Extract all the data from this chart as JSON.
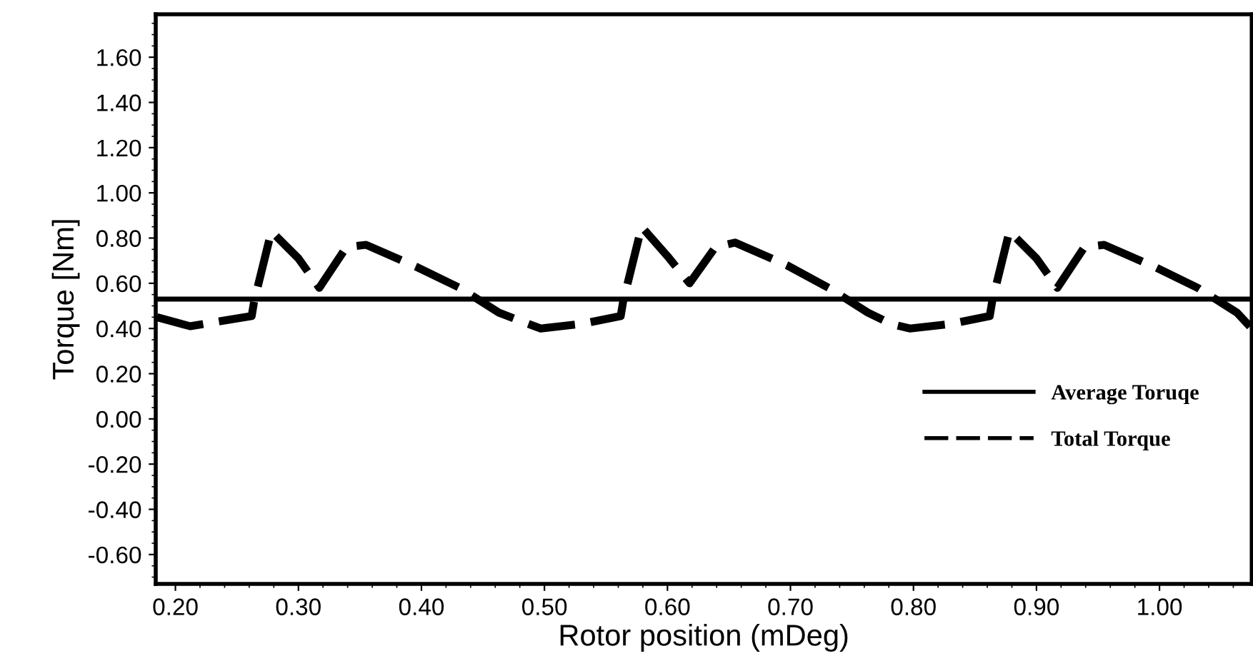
{
  "chart_data": {
    "type": "line",
    "xlabel": "Rotor position (mDeg)",
    "ylabel": "Torque [Nm]",
    "xlim": [
      0.184,
      1.075
    ],
    "ylim": [
      -0.73,
      1.79
    ],
    "xticks": [
      {
        "value": 0.2,
        "label": "0.20"
      },
      {
        "value": 0.3,
        "label": "0.30"
      },
      {
        "value": 0.4,
        "label": "0.40"
      },
      {
        "value": 0.5,
        "label": "0.50"
      },
      {
        "value": 0.6,
        "label": "0.60"
      },
      {
        "value": 0.7,
        "label": "0.70"
      },
      {
        "value": 0.8,
        "label": "0.80"
      },
      {
        "value": 0.9,
        "label": "0.90"
      },
      {
        "value": 1.0,
        "label": "1.00"
      }
    ],
    "yticks": [
      {
        "value": -0.6,
        "label": "-0.60"
      },
      {
        "value": -0.4,
        "label": "-0.40"
      },
      {
        "value": -0.2,
        "label": "-0.20"
      },
      {
        "value": 0.0,
        "label": "0.00"
      },
      {
        "value": 0.2,
        "label": "0.20"
      },
      {
        "value": 0.4,
        "label": "0.40"
      },
      {
        "value": 0.6,
        "label": "0.60"
      },
      {
        "value": 0.8,
        "label": "0.80"
      },
      {
        "value": 1.0,
        "label": "1.00"
      },
      {
        "value": 1.2,
        "label": "1.20"
      },
      {
        "value": 1.4,
        "label": "1.40"
      },
      {
        "value": 1.6,
        "label": "1.60"
      }
    ],
    "grid": false,
    "legend": "bottom right",
    "marker": "none",
    "series": [
      {
        "name": "Average Toruqe",
        "color": "#000000",
        "line_style": "solid",
        "x": [
          0.184,
          1.075
        ],
        "values": [
          0.53,
          0.53
        ]
      },
      {
        "name": "Total Torque",
        "color": "#000000",
        "line_style": "dashed",
        "x": [
          0.185,
          0.212,
          0.262,
          0.264,
          0.278,
          0.3,
          0.317,
          0.339,
          0.355,
          0.397,
          0.431,
          0.463,
          0.482,
          0.497,
          0.53,
          0.562,
          0.564,
          0.579,
          0.6,
          0.618,
          0.639,
          0.655,
          0.697,
          0.731,
          0.763,
          0.782,
          0.797,
          0.83,
          0.862,
          0.864,
          0.878,
          0.9,
          0.917,
          0.939,
          0.955,
          0.997,
          1.031,
          1.063,
          1.075
        ],
        "values": [
          0.45,
          0.41,
          0.455,
          0.52,
          0.83,
          0.71,
          0.58,
          0.76,
          0.77,
          0.67,
          0.58,
          0.47,
          0.43,
          0.4,
          0.42,
          0.455,
          0.52,
          0.85,
          0.72,
          0.6,
          0.76,
          0.78,
          0.68,
          0.58,
          0.47,
          0.42,
          0.4,
          0.42,
          0.455,
          0.52,
          0.83,
          0.71,
          0.58,
          0.76,
          0.77,
          0.67,
          0.58,
          0.47,
          0.4
        ]
      }
    ]
  }
}
